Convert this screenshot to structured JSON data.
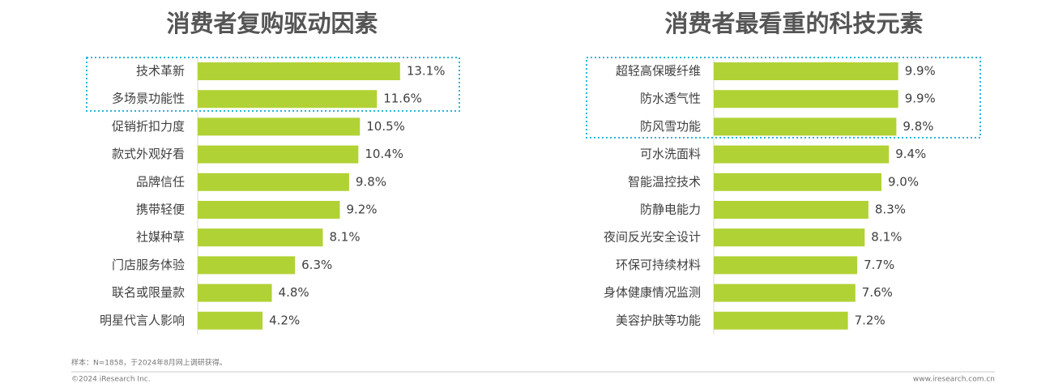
{
  "chart_data": [
    {
      "type": "bar",
      "orientation": "horizontal",
      "title": "消费者复购驱动因素",
      "categories": [
        "技术革新",
        "多场景功能性",
        "促销折扣力度",
        "款式外观好看",
        "品牌信任",
        "携带轻便",
        "社媒种草",
        "门店服务体验",
        "联名或限量款",
        "明星代言人影响"
      ],
      "values": [
        13.1,
        11.6,
        10.5,
        10.4,
        9.8,
        9.2,
        8.1,
        6.3,
        4.8,
        4.2
      ],
      "value_labels": [
        "13.1%",
        "11.6%",
        "10.5%",
        "10.4%",
        "9.8%",
        "9.2%",
        "8.1%",
        "6.3%",
        "4.8%",
        "4.2%"
      ],
      "color": "#b1d235",
      "xlim": [
        0,
        14
      ]
    },
    {
      "type": "bar",
      "orientation": "horizontal",
      "title": "消费者最看重的科技元素",
      "categories": [
        "超轻高保暖纤维",
        "防水透气性",
        "防风雪功能",
        "可水洗面料",
        "智能温控技术",
        "防静电能力",
        "夜间反光安全设计",
        "环保可持续材料",
        "身体健康情况监测",
        "美容护肤等功能"
      ],
      "values": [
        9.9,
        9.9,
        9.8,
        9.4,
        9.0,
        8.3,
        8.1,
        7.7,
        7.6,
        7.2
      ],
      "value_labels": [
        "9.9%",
        "9.9%",
        "9.8%",
        "9.4%",
        "9.0%",
        "8.3%",
        "8.1%",
        "7.7%",
        "7.6%",
        "7.2%"
      ],
      "color": "#b1d235",
      "xlim": [
        0,
        10
      ]
    }
  ],
  "footer": {
    "note": "样本：N=1858，于2024年8月网上调研获得。",
    "copyright": "©2024 iResearch Inc.",
    "website": "www.iresearch.com.cn"
  }
}
